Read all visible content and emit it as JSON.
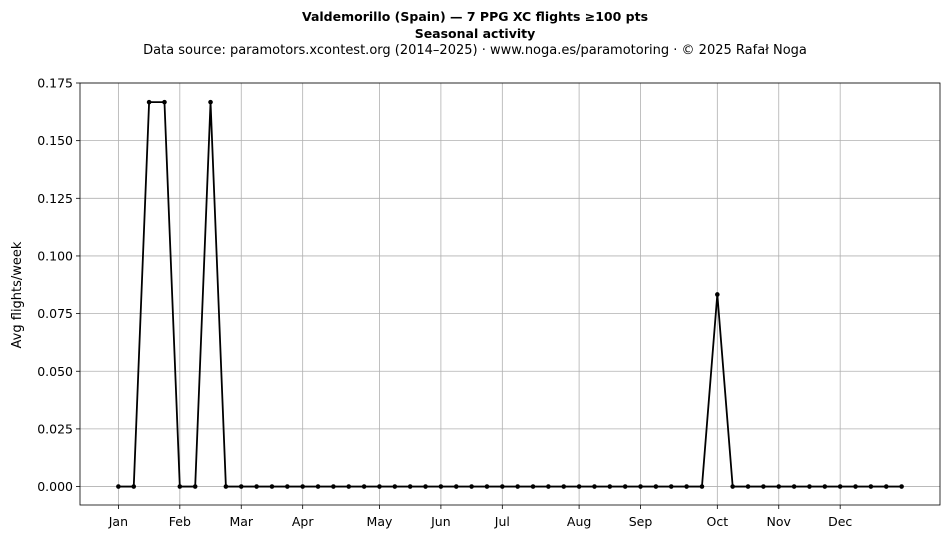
{
  "chart_data": {
    "type": "line",
    "title": "Valdemorillo (Spain)  —  7 PPG XC flights ≥100 pts",
    "subtitle": "Seasonal activity",
    "source": "Data source: paramotors.xcontest.org (2014–2025)  ·  www.noga.es/paramotoring  ·  © 2025 Rafał Noga",
    "xlabel": "",
    "ylabel": "Avg flights/week",
    "ylim": [
      -0.008,
      0.175
    ],
    "yticks": [
      0.0,
      0.025,
      0.05,
      0.075,
      0.1,
      0.125,
      0.15,
      0.175
    ],
    "ytick_labels": [
      "0.000",
      "0.025",
      "0.050",
      "0.075",
      "0.100",
      "0.125",
      "0.150",
      "0.175"
    ],
    "xlim": [
      -2.5,
      53.5
    ],
    "xticks": [
      {
        "label": "Jan",
        "week": 0
      },
      {
        "label": "Feb",
        "week": 4
      },
      {
        "label": "Mar",
        "week": 8
      },
      {
        "label": "Apr",
        "week": 12
      },
      {
        "label": "May",
        "week": 17
      },
      {
        "label": "Jun",
        "week": 21
      },
      {
        "label": "Jul",
        "week": 25
      },
      {
        "label": "Aug",
        "week": 30
      },
      {
        "label": "Sep",
        "week": 34
      },
      {
        "label": "Oct",
        "week": 39
      },
      {
        "label": "Nov",
        "week": 43
      },
      {
        "label": "Dec",
        "week": 47
      }
    ],
    "grid": true,
    "line_color": "#000000",
    "series": [
      {
        "x": [
          0,
          1,
          2,
          3,
          4,
          5,
          6,
          7,
          8,
          9,
          10,
          11,
          12,
          13,
          14,
          15,
          16,
          17,
          18,
          19,
          20,
          21,
          22,
          23,
          24,
          25,
          26,
          27,
          28,
          29,
          30,
          31,
          32,
          33,
          34,
          35,
          36,
          37,
          38,
          39,
          40,
          41,
          42,
          43,
          44,
          45,
          46,
          47,
          48,
          49,
          50,
          51
        ],
        "values": [
          0,
          0,
          0.1667,
          0.1667,
          0,
          0,
          0.1667,
          0,
          0,
          0,
          0,
          0,
          0,
          0,
          0,
          0,
          0,
          0,
          0,
          0,
          0,
          0,
          0,
          0,
          0,
          0,
          0,
          0,
          0,
          0,
          0,
          0,
          0,
          0,
          0,
          0,
          0,
          0,
          0,
          0.0833,
          0,
          0,
          0,
          0,
          0,
          0,
          0,
          0,
          0,
          0,
          0,
          0
        ]
      }
    ]
  }
}
